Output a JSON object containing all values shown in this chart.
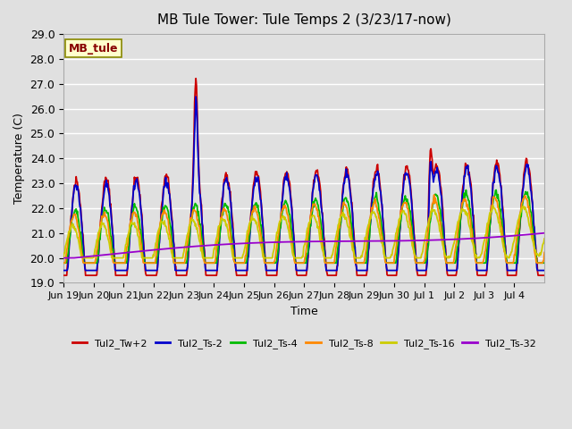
{
  "title": "MB Tule Tower: Tule Temps 2 (3/23/17-now)",
  "xlabel": "Time",
  "ylabel": "Temperature (C)",
  "ylim": [
    19.0,
    29.0
  ],
  "yticks": [
    19.0,
    20.0,
    21.0,
    22.0,
    23.0,
    24.0,
    25.0,
    26.0,
    27.0,
    28.0,
    29.0
  ],
  "plot_bg_color": "#e0e0e0",
  "grid_color": "#ffffff",
  "series": {
    "Tul2_Tw+2": {
      "color": "#cc0000",
      "lw": 1.3
    },
    "Tul2_Ts-2": {
      "color": "#0000cc",
      "lw": 1.3
    },
    "Tul2_Ts-4": {
      "color": "#00bb00",
      "lw": 1.3
    },
    "Tul2_Ts-8": {
      "color": "#ff8800",
      "lw": 1.3
    },
    "Tul2_Ts-16": {
      "color": "#cccc00",
      "lw": 1.3
    },
    "Tul2_Ts-32": {
      "color": "#9900cc",
      "lw": 1.3
    }
  },
  "xtick_labels": [
    "Jun 19",
    "Jun 20",
    "Jun 21",
    "Jun 22",
    "Jun 23",
    "Jun 24",
    "Jun 25",
    "Jun 26",
    "Jun 27",
    "Jun 28",
    "Jun 29",
    "Jun 30",
    "Jul 1",
    "Jul 2",
    "Jul 3",
    "Jul 4"
  ],
  "annotation_text": "MB_tule",
  "annotation_color": "#880000",
  "annotation_bg": "#ffffcc",
  "annotation_border": "#888800"
}
